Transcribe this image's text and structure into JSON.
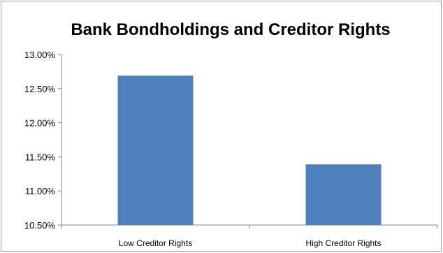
{
  "chart_data": {
    "type": "bar",
    "title": "Bank Bondholdings and Creditor Rights",
    "xlabel": "",
    "ylabel": "",
    "categories": [
      "Low Creditor Rights",
      "High Creditor Rights"
    ],
    "values": [
      0.1269,
      0.1139
    ],
    "ylim": [
      0.105,
      0.13
    ],
    "yticks": [
      0.105,
      0.11,
      0.115,
      0.12,
      0.125,
      0.13
    ],
    "ytick_labels": [
      "10.50%",
      "11.00%",
      "11.50%",
      "12.00%",
      "12.50%",
      "13.00%"
    ],
    "bar_color": "#4f81bd",
    "grid": false,
    "legend": "none"
  }
}
